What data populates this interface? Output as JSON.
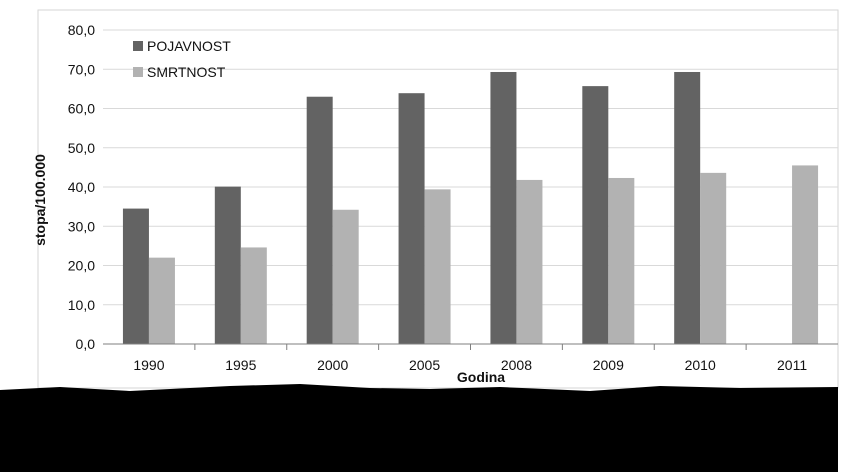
{
  "chart_data": {
    "type": "bar",
    "title": "",
    "xlabel": "Godina",
    "ylabel": "stopa/100.000",
    "categories": [
      "1990",
      "1995",
      "2000",
      "2005",
      "2008",
      "2009",
      "2010",
      "2011"
    ],
    "series": [
      {
        "name": "POJAVNOST",
        "color": "#636363",
        "values": [
          34.5,
          40.1,
          63.0,
          63.9,
          69.3,
          65.7,
          69.3,
          null
        ]
      },
      {
        "name": "SMRTNOST",
        "color": "#b2b2b2",
        "values": [
          22.0,
          24.6,
          34.2,
          39.4,
          41.8,
          42.3,
          43.6,
          45.5
        ]
      }
    ],
    "yticks": [
      "0,0",
      "10,0",
      "20,0",
      "30,0",
      "40,0",
      "50,0",
      "60,0",
      "70,0",
      "80,0"
    ],
    "ylim": [
      0,
      80
    ],
    "grid": true,
    "legend": "top-left"
  }
}
